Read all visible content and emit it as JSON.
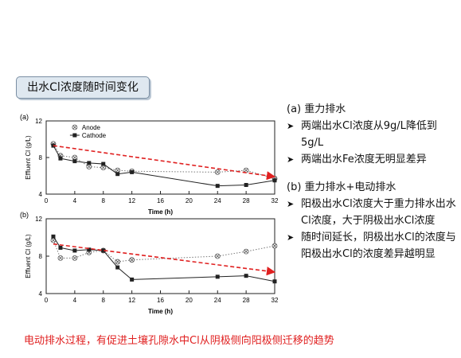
{
  "slide_title": "出水Cl浓度随时间变化",
  "right_panel": {
    "section_a": {
      "heading": "(a) 重力排水",
      "bullets": [
        "两端出水Cl浓度从9g/L降低到5g/L",
        "两端出水Fe浓度无明显差异"
      ]
    },
    "section_b": {
      "heading": "(b) 重力排水+电动排水",
      "bullets": [
        "阳极出水Cl浓度大于重力排水出水Cl浓度，大于阴极出水Cl浓度",
        "随时间延长，阴极出水Cl的浓度与阳极出水Cl的浓度差异越明显"
      ]
    }
  },
  "footer": "电动排水过程，有促进土壤孔隙水中Cl从阴极侧向阳极侧迁移的趋势",
  "colors": {
    "footer": "#e02020",
    "trend_arrow": "#e02020",
    "title_bg": "#dfe8f0"
  },
  "chart_data": [
    {
      "type": "line",
      "panel_label": "(a)",
      "xlabel": "Time (h)",
      "ylabel": "Effluent Cl (g/L)",
      "xlim": [
        0,
        32
      ],
      "ylim": [
        4,
        12
      ],
      "xticks": [
        0,
        4,
        8,
        12,
        16,
        20,
        24,
        28,
        32
      ],
      "yticks": [
        4,
        8,
        12
      ],
      "legend": "top-left",
      "series": [
        {
          "name": "Anode",
          "marker": "circle-x",
          "style": "dotted",
          "x": [
            1,
            2,
            4,
            6,
            8,
            10,
            12,
            24,
            28,
            32
          ],
          "y": [
            9.5,
            8.2,
            8.0,
            7.0,
            6.9,
            6.6,
            6.5,
            6.4,
            6.6,
            5.7
          ]
        },
        {
          "name": "Cathode",
          "marker": "square",
          "style": "solid",
          "x": [
            1,
            2,
            4,
            6,
            8,
            10,
            12,
            24,
            28,
            32
          ],
          "y": [
            9.3,
            7.9,
            7.6,
            7.4,
            7.3,
            6.2,
            6.4,
            4.9,
            5.0,
            5.5
          ]
        }
      ],
      "annotation": {
        "type": "trend-arrow",
        "from": [
          1,
          9.3
        ],
        "to": [
          32,
          5.9
        ]
      }
    },
    {
      "type": "line",
      "panel_label": "(b)",
      "xlabel": "Time (h)",
      "ylabel": "Effluent Cl (g/L)",
      "xlim": [
        0,
        32
      ],
      "ylim": [
        4,
        12
      ],
      "xticks": [
        0,
        4,
        8,
        12,
        16,
        20,
        24,
        28,
        32
      ],
      "yticks": [
        4,
        8,
        12
      ],
      "series": [
        {
          "name": "Anode",
          "marker": "circle-x",
          "style": "dotted",
          "x": [
            1,
            2,
            4,
            6,
            8,
            10,
            12,
            24,
            28,
            32
          ],
          "y": [
            9.7,
            7.8,
            7.8,
            8.4,
            8.6,
            7.4,
            7.6,
            8.0,
            8.5,
            9.1
          ]
        },
        {
          "name": "Cathode",
          "marker": "square",
          "style": "solid",
          "x": [
            1,
            2,
            4,
            6,
            8,
            10,
            12,
            24,
            28,
            32
          ],
          "y": [
            10.1,
            8.9,
            8.6,
            8.7,
            8.6,
            6.8,
            5.5,
            5.8,
            5.9,
            5.3
          ]
        }
      ],
      "annotation": {
        "type": "trend-arrow",
        "from": [
          1,
          9.3
        ],
        "to": [
          32,
          6.3
        ]
      }
    }
  ]
}
